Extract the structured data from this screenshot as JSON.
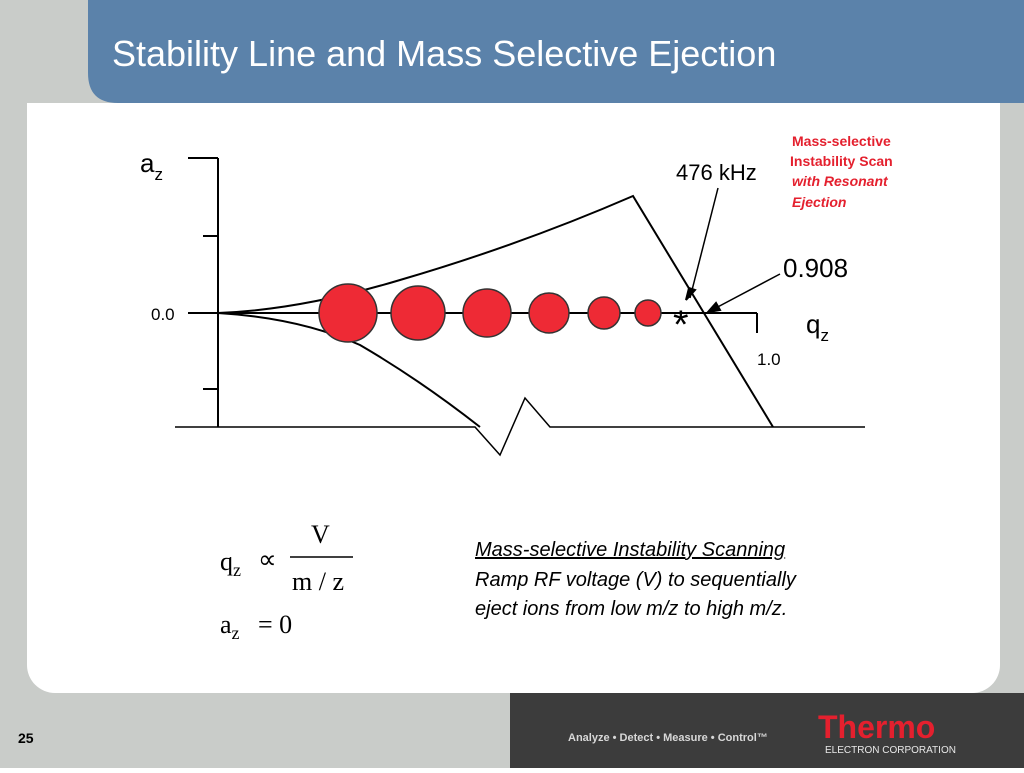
{
  "header": {
    "title": "Stability Line and Mass Selective Ejection"
  },
  "diagram": {
    "a_axis": {
      "main": "a",
      "sub": "z"
    },
    "origin_label": "0.0",
    "q_axis": {
      "main": "q",
      "sub": "z"
    },
    "q_end_label": "1.0",
    "frequency_label": "476 kHz",
    "q_eject_label": "0.908",
    "eject_marker": "*",
    "scan_note": [
      "Mass-selective",
      "Instability Scan",
      "with Resonant",
      "Ejection"
    ]
  },
  "equations": {
    "q_symbol": {
      "main": "q",
      "sub": "z"
    },
    "proportional": "∝",
    "numerator": "V",
    "denominator": "m / z",
    "a_symbol": {
      "main": "a",
      "sub": "z"
    },
    "a_value": "= 0"
  },
  "caption": {
    "heading": "Mass-selective Instability Scanning",
    "lines": [
      "Ramp RF voltage (V) to sequentially",
      "eject ions from low m/z to high m/z."
    ]
  },
  "footer": {
    "slide_number": "25",
    "tagline": "Analyze • Detect • Measure • Control™",
    "logo": "Thermo",
    "company": "ELECTRON CORPORATION"
  }
}
